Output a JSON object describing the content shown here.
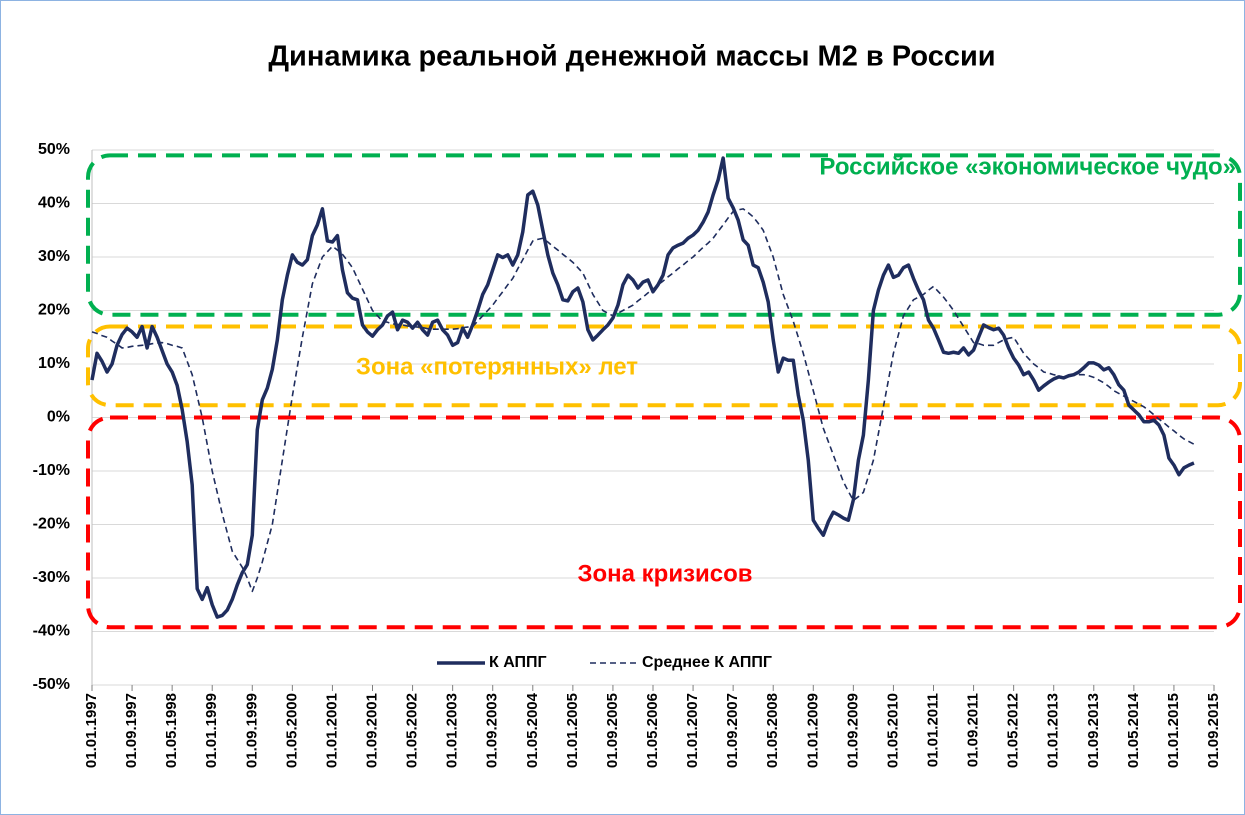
{
  "chart_data": {
    "type": "line",
    "title": "Динамика реальной денежной массы М2 в России",
    "categories": [
      "01.01.1997",
      null,
      null,
      null,
      null,
      null,
      null,
      null,
      "01.09.1997",
      null,
      null,
      null,
      null,
      null,
      null,
      null,
      "01.05.1998",
      null,
      null,
      null,
      null,
      null,
      null,
      null,
      "01.01.1999",
      null,
      null,
      null,
      null,
      null,
      null,
      null,
      "01.09.1999",
      null,
      null,
      null,
      null,
      null,
      null,
      null,
      "01.05.2000",
      null,
      null,
      null,
      null,
      null,
      null,
      null,
      "01.01.2001",
      null,
      null,
      null,
      null,
      null,
      null,
      null,
      "01.09.2001",
      null,
      null,
      null,
      null,
      null,
      null,
      null,
      "01.05.2002",
      null,
      null,
      null,
      null,
      null,
      null,
      null,
      "01.01.2003",
      null,
      null,
      null,
      null,
      null,
      null,
      null,
      "01.09.2003",
      null,
      null,
      null,
      null,
      null,
      null,
      null,
      "01.05.2004",
      null,
      null,
      null,
      null,
      null,
      null,
      null,
      "01.01.2005",
      null,
      null,
      null,
      null,
      null,
      null,
      null,
      "01.09.2005",
      null,
      null,
      null,
      null,
      null,
      null,
      null,
      "01.05.2006",
      null,
      null,
      null,
      null,
      null,
      null,
      null,
      "01.01.2007",
      null,
      null,
      null,
      null,
      null,
      null,
      null,
      "01.09.2007",
      null,
      null,
      null,
      null,
      null,
      null,
      null,
      "01.05.2008",
      null,
      null,
      null,
      null,
      null,
      null,
      null,
      "01.01.2009",
      null,
      null,
      null,
      null,
      null,
      null,
      null,
      "01.09.2009",
      null,
      null,
      null,
      null,
      null,
      null,
      null,
      "01.05.2010",
      null,
      null,
      null,
      null,
      null,
      null,
      null,
      "01.01.2011",
      null,
      null,
      null,
      null,
      null,
      null,
      null,
      "01.09.2011",
      null,
      null,
      null,
      null,
      null,
      null,
      null,
      "01.05.2012",
      null,
      null,
      null,
      null,
      null,
      null,
      null,
      "01.01.2013",
      null,
      null,
      null,
      null,
      null,
      null,
      null,
      "01.09.2013",
      null,
      null,
      null,
      null,
      null,
      null,
      null,
      "01.05.2014",
      null,
      null,
      null,
      null,
      null,
      null,
      null,
      "01.01.2015",
      null,
      null,
      null,
      null,
      null,
      null,
      null,
      "01.09.2015"
    ],
    "series": [
      {
        "name": "К АППГ",
        "color": "#1f2d5e",
        "dash": false,
        "values": [
          7,
          12,
          10.5,
          8.5,
          10,
          13.5,
          15.5,
          16.7,
          16,
          15,
          17,
          13,
          17,
          15,
          12.5,
          10,
          8.5,
          6,
          1.5,
          -4.5,
          -12.6,
          -32,
          -34,
          -31.8,
          -35,
          -37.3,
          -37,
          -36,
          -34,
          -31.3,
          -29,
          -27.5,
          -22,
          -2.3,
          3.3,
          5.5,
          9,
          14.5,
          22,
          26.6,
          30.4,
          29,
          28.5,
          29.5,
          34,
          36,
          39,
          33,
          32.8,
          34,
          27.6,
          23.3,
          22.3,
          22,
          17.3,
          16,
          15.2,
          16.4,
          17.3,
          19,
          19.7,
          16.4,
          18.2,
          17.8,
          16.7,
          17.8,
          16.4,
          15.4,
          17.8,
          18.2,
          16.4,
          15.4,
          13.5,
          14,
          16.7,
          15,
          17.3,
          20,
          23,
          24.8,
          27.6,
          30.4,
          29.9,
          30.4,
          28.5,
          30.4,
          34.7,
          41.6,
          42.3,
          39.7,
          35,
          30.4,
          27,
          24.8,
          22,
          21.8,
          23.5,
          24.2,
          21.6,
          16.4,
          14.5,
          15.4,
          16.4,
          17.3,
          18.6,
          21,
          24.8,
          26.6,
          25.7,
          24.2,
          25.3,
          25.7,
          23.5,
          24.8,
          26.6,
          30.4,
          31.7,
          32.2,
          32.6,
          33.5,
          34.1,
          35,
          36.5,
          38.4,
          41.6,
          44.4,
          48.5,
          41,
          39.2,
          36.9,
          33.2,
          32.2,
          28.5,
          28,
          25.3,
          21.6,
          14.5,
          8.5,
          11.1,
          10.7,
          10.7,
          4.2,
          -0.5,
          -8,
          -19.2,
          -20.7,
          -22,
          -19.5,
          -17.7,
          -18.2,
          -18.8,
          -19.2,
          -15.4,
          -8,
          -3.3,
          7,
          20,
          23.8,
          26.6,
          28.5,
          26.2,
          26.6,
          28,
          28.5,
          26,
          23.8,
          22,
          18.2,
          16.7,
          14.5,
          12.2,
          12,
          12.2,
          12,
          13,
          11.7,
          12.6,
          15,
          17.3,
          16.8,
          16.4,
          16.7,
          15.4,
          13,
          11.1,
          9.8,
          8,
          8.5,
          7,
          5.1,
          5.9,
          6.6,
          7.2,
          7.6,
          7.4,
          7.8,
          8,
          8.5,
          9.3,
          10.2,
          10.2,
          9.8,
          8.9,
          9.3,
          8,
          6.1,
          5.1,
          2.3,
          1.4,
          0.5,
          -0.8,
          -0.8,
          -0.5,
          -1.4,
          -3.3,
          -7.6,
          -8.9,
          -10.7,
          -9.4,
          -8.9,
          -8.5,
          null,
          null,
          null,
          null
        ]
      },
      {
        "name": "Среднее К АППГ",
        "color": "#1f2d5e",
        "dash": true,
        "values": [
          16,
          15.7,
          15.3,
          15,
          14.3,
          13.7,
          13,
          13.1,
          13.3,
          13.4,
          13.5,
          13.6,
          13.8,
          13.9,
          14,
          13.8,
          13.5,
          13.3,
          13,
          10.5,
          8,
          4,
          0,
          -5,
          -10,
          -14,
          -18,
          -21.5,
          -25,
          -26.5,
          -28,
          -30,
          -32.5,
          -30,
          -27,
          -23.5,
          -20,
          -14,
          -8,
          -2,
          4,
          9.5,
          15,
          20,
          25,
          27.5,
          30,
          31,
          32,
          31.3,
          30.5,
          29.3,
          28,
          26,
          24,
          22,
          20,
          19,
          18,
          17.8,
          17.5,
          17.4,
          17.3,
          17.1,
          17,
          16.9,
          16.8,
          16.6,
          16.5,
          16.5,
          16.5,
          16.5,
          16.5,
          16.6,
          16.8,
          16.9,
          17,
          18,
          19,
          20,
          21,
          22.3,
          23.5,
          24.8,
          26,
          27.8,
          29.5,
          31.3,
          33,
          33.3,
          33.5,
          32.8,
          32,
          31.3,
          30.5,
          29.8,
          29,
          28,
          27,
          25,
          23,
          21.5,
          20,
          19.5,
          19,
          19.5,
          20,
          20.5,
          21,
          21.8,
          22.5,
          23.3,
          24,
          24.8,
          25.5,
          26.3,
          27,
          27.8,
          28.5,
          29.3,
          30,
          30.9,
          31.8,
          32.6,
          33.5,
          34.8,
          36,
          37.3,
          38.5,
          38.8,
          39,
          38.3,
          37.5,
          36.3,
          35,
          32.5,
          30,
          26.5,
          23,
          20.5,
          18,
          15,
          12,
          8.5,
          5,
          1.5,
          -2,
          -4.5,
          -7,
          -9.5,
          -12,
          -13.8,
          -15.5,
          -14.8,
          -14,
          -11,
          -8,
          -3,
          2,
          7,
          12,
          15.5,
          19,
          20.5,
          22,
          22.5,
          23,
          23.8,
          24.5,
          23.5,
          22.5,
          21.3,
          20,
          18.5,
          17,
          15.5,
          14,
          13.8,
          13.5,
          13.5,
          13.5,
          14,
          14.5,
          14.8,
          15,
          13.5,
          12,
          11,
          10,
          9.3,
          8.5,
          8.3,
          8,
          7.8,
          7.5,
          7.8,
          8,
          8,
          8,
          7.8,
          7.5,
          7,
          6.5,
          5.8,
          5,
          4.5,
          4,
          3.5,
          3,
          2.5,
          2,
          1.3,
          0.5,
          -0.3,
          -1,
          -1.8,
          -2.5,
          -3.3,
          -4,
          -4.5,
          -5,
          null,
          null,
          null,
          null
        ]
      }
    ],
    "ylim": [
      -50,
      50
    ],
    "yticks": [
      {
        "value": -50,
        "label": "-50%"
      },
      {
        "value": -40,
        "label": "-40%"
      },
      {
        "value": -30,
        "label": "-30%"
      },
      {
        "value": -20,
        "label": "-20%"
      },
      {
        "value": -10,
        "label": "-10%"
      },
      {
        "value": 0,
        "label": "0%"
      },
      {
        "value": 10,
        "label": "10%"
      },
      {
        "value": 20,
        "label": "20%"
      },
      {
        "value": 30,
        "label": "30%"
      },
      {
        "value": 40,
        "label": "40%"
      },
      {
        "value": 50,
        "label": "50%"
      }
    ],
    "grid": true,
    "legend": "bottom",
    "annotations": [
      {
        "text": "Российское «экономическое чудо»",
        "color": "#00b050",
        "range": [
          19.2,
          49
        ]
      },
      {
        "text": "Зона «потерянных» лет",
        "color": "#ffc000",
        "range": [
          2.3,
          17
        ]
      },
      {
        "text": "Зона кризисов",
        "color": "#ff0000",
        "range": [
          -39.2,
          0
        ]
      }
    ]
  }
}
